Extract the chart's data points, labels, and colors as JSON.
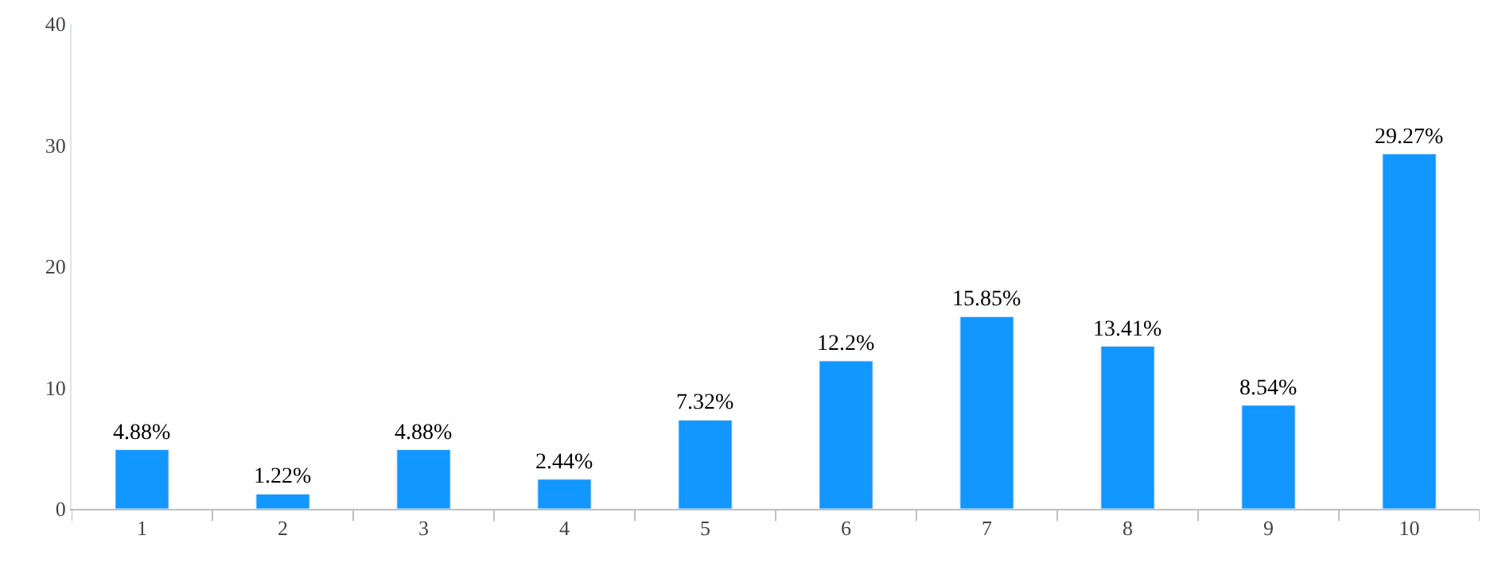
{
  "chart_data": {
    "type": "bar",
    "categories": [
      "1",
      "2",
      "3",
      "4",
      "5",
      "6",
      "7",
      "8",
      "9",
      "10"
    ],
    "values": [
      4.88,
      1.22,
      4.88,
      2.44,
      7.32,
      12.2,
      15.85,
      13.41,
      8.54,
      29.27
    ],
    "value_labels": [
      "4.88%",
      "1.22%",
      "4.88%",
      "2.44%",
      "7.32%",
      "12.2%",
      "15.85%",
      "13.41%",
      "8.54%",
      "29.27%"
    ],
    "color": "#1296ff",
    "ylim": [
      0,
      40
    ],
    "yticks": [
      0,
      10,
      20,
      30,
      40
    ]
  }
}
